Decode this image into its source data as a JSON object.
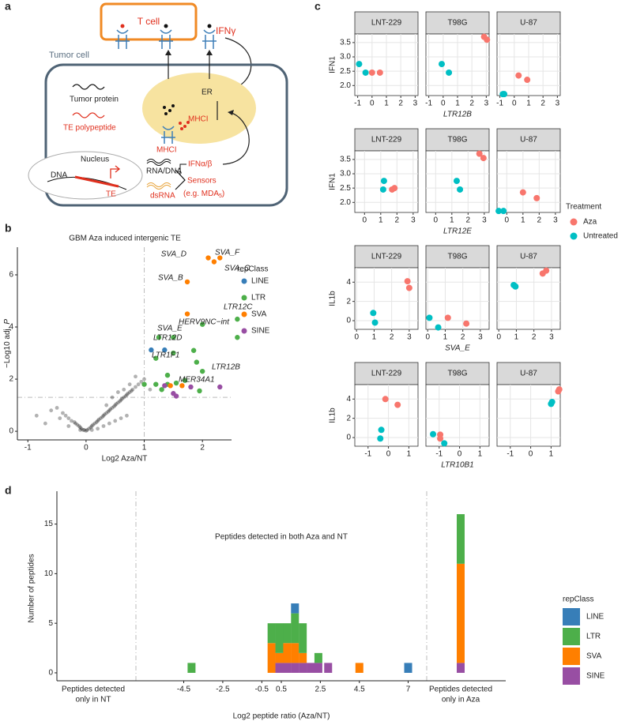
{
  "panel_labels": [
    "a",
    "b",
    "c",
    "d"
  ],
  "diagram": {
    "t_cell": "T cell",
    "ifng": "IFNγ",
    "tumor_cell": "Tumor cell",
    "er": "ER",
    "tumor_protein": "Tumor protein",
    "te_polypeptide": "TE polypeptide",
    "mhci_er": "MHCI",
    "mhci": "MHCI",
    "nucleus": "Nucleus",
    "dna": "DNA",
    "te": "TE",
    "rna_dna": "RNA/DNA",
    "dsrna": "dsRNA",
    "ifnab": "IFNα/β",
    "sensors": "Sensors",
    "sensors_example": "(e.g. MDA",
    "sensors_sub": "5",
    "sensors_close": ")"
  },
  "chart_data": [
    {
      "type": "scatter",
      "title": "GBM Aza induced intergenic TE",
      "xlabel": "Log2 Aza/NT",
      "ylabel": "−Log10 adj. ",
      "ylabel_italic": "P",
      "xlim": [
        -1.18,
        2.5
      ],
      "ylim": [
        -0.33,
        7.06
      ],
      "xticks": [
        -1,
        0,
        1,
        2
      ],
      "yticks": [
        0,
        2,
        4,
        6
      ],
      "grid": false,
      "vlines": [
        1
      ],
      "hlines": [
        1.3
      ],
      "legend_title": "repClass",
      "series": [
        {
          "color": "#000000",
          "x": [
            -0.85,
            -0.6,
            -0.5,
            -0.45,
            -0.4,
            -0.35,
            -0.3,
            -0.25,
            -0.2,
            -0.18,
            -0.15,
            -0.12,
            -0.1,
            -0.08,
            -0.05,
            -0.03,
            0,
            0.02,
            0.05,
            0.08,
            0.1,
            0.12,
            0.15,
            0.18,
            0.2,
            0.22,
            0.25,
            0.28,
            0.3,
            0.32,
            0.35,
            0.38,
            0.4,
            0.42,
            0.45,
            0.48,
            0.5,
            0.52,
            0.55,
            0.58,
            0.6,
            0.62,
            0.65,
            0.68,
            0.7,
            0.72,
            0.75,
            0.78,
            0.8,
            0.85,
            0.9,
            0.95,
            1.0,
            0.3,
            0.4,
            0.5,
            0.6,
            0.7,
            0.2,
            0.1,
            -0.1,
            -0.3,
            0.45,
            0.55,
            0.65,
            0.75,
            0.85,
            1.1,
            -0.7,
            0.35
          ],
          "values": [
            0.6,
            0.8,
            0.9,
            0.5,
            0.7,
            0.6,
            0.5,
            0.4,
            0.35,
            0.3,
            0.25,
            0.2,
            0.15,
            0.1,
            0.05,
            0.05,
            0.02,
            0.05,
            0.1,
            0.15,
            0.2,
            0.25,
            0.3,
            0.35,
            0.4,
            0.45,
            0.5,
            0.55,
            0.6,
            0.65,
            0.7,
            0.75,
            0.8,
            0.85,
            0.9,
            0.95,
            1.0,
            1.05,
            1.1,
            1.15,
            1.2,
            1.25,
            1.3,
            1.35,
            1.4,
            1.45,
            1.5,
            1.55,
            1.6,
            1.7,
            1.8,
            1.9,
            2.0,
            0.2,
            0.3,
            0.4,
            0.5,
            0.6,
            0.1,
            0.05,
            0.05,
            0.2,
            1.3,
            1.5,
            1.6,
            1.8,
            2.1,
            1.6,
            0.3,
            1.0
          ]
        },
        {
          "name": "LINE",
          "color": "#377EB8",
          "x": [
            1.12,
            1.35
          ],
          "values": [
            3.12,
            3.12
          ]
        },
        {
          "name": "LTR",
          "color": "#4DAF4A",
          "x": [
            2.6,
            2.0,
            1.5,
            1.5,
            2.6,
            1.25,
            1.2,
            1.85,
            1.9,
            2.0,
            1.0,
            1.2,
            1.4,
            1.55,
            1.95,
            1.7,
            1.3,
            1.4
          ],
          "values": [
            4.3,
            4.1,
            3.6,
            3.0,
            3.6,
            3.6,
            2.8,
            3.1,
            2.65,
            2.3,
            1.8,
            1.8,
            1.8,
            1.85,
            1.55,
            1.95,
            1.6,
            2.15
          ]
        },
        {
          "name": "SVA",
          "color": "#FF7F00",
          "x": [
            2.1,
            2.3,
            2.2,
            1.74,
            1.74,
            1.45,
            1.65
          ],
          "values": [
            6.65,
            6.65,
            6.5,
            5.73,
            4.5,
            1.75,
            1.75
          ]
        },
        {
          "name": "SINE",
          "color": "#984EA3",
          "x": [
            1.35,
            1.55,
            1.8,
            2.3,
            1.5
          ],
          "values": [
            1.75,
            1.35,
            1.7,
            1.7,
            1.45
          ]
        }
      ],
      "annotations": [
        "SVA_D",
        "SVA_F",
        "SVA_C",
        "SVA_B",
        "SVA_E",
        "LTR12C",
        "HERV9NC−int",
        "LTR12D",
        "LTR1F1",
        "LTR12B",
        "MER34A1"
      ]
    },
    {
      "type": "facet_scatter",
      "legend_title": "Treatment",
      "grid": true,
      "legend": [
        {
          "name": "Aza",
          "color": "#F8766D"
        },
        {
          "name": "Untreated",
          "color": "#00BFC4"
        }
      ],
      "rows": [
        {
          "xlabel": "LTR12B",
          "ylabel": "IFN1",
          "xlim": [
            -1.2,
            3.2
          ],
          "xticks": [
            -1,
            0,
            1,
            2,
            3
          ],
          "ylim": [
            1.65,
            3.8
          ],
          "yticks": [
            {
              "value": 2,
              "label": "2.0"
            },
            2.5,
            {
              "value": 3,
              "label": "3.0"
            },
            3.5
          ],
          "facets": [
            {
              "title": "LNT-229",
              "series": [
                {
                  "x": [
                    0,
                    0.55
                  ],
                  "values": [
                    2.45,
                    2.45
                  ]
                },
                {
                  "x": [
                    -0.9,
                    -0.45
                  ],
                  "values": [
                    2.75,
                    2.45
                  ]
                }
              ]
            },
            {
              "title": "T98G",
              "series": [
                {
                  "x": [
                    2.85,
                    3.05
                  ],
                  "values": [
                    3.7,
                    3.6
                  ]
                },
                {
                  "x": [
                    -0.1,
                    0.4
                  ],
                  "values": [
                    2.75,
                    2.45
                  ]
                }
              ]
            },
            {
              "title": "U-87",
              "series": [
                {
                  "x": [
                    0.3,
                    0.9
                  ],
                  "values": [
                    2.35,
                    2.2
                  ]
                },
                {
                  "x": [
                    -0.8,
                    -0.7
                  ],
                  "values": [
                    1.7,
                    1.7
                  ]
                }
              ]
            }
          ]
        },
        {
          "xlabel": "LTR12E",
          "ylabel": "IFN1",
          "xlim": [
            -0.6,
            3.3
          ],
          "xticks": [
            0,
            1,
            2,
            3
          ],
          "ylim": [
            1.65,
            3.8
          ],
          "yticks": [
            {
              "value": 2,
              "label": "2.0"
            },
            2.5,
            {
              "value": 3,
              "label": "3.0"
            },
            3.5
          ],
          "facets": [
            {
              "title": "LNT-229",
              "series": [
                {
                  "x": [
                    1.7,
                    1.85
                  ],
                  "values": [
                    2.45,
                    2.5
                  ]
                },
                {
                  "x": [
                    1.2,
                    1.15
                  ],
                  "values": [
                    2.75,
                    2.45
                  ]
                }
              ]
            },
            {
              "title": "T98G",
              "series": [
                {
                  "x": [
                    2.7,
                    2.95
                  ],
                  "values": [
                    3.7,
                    3.55
                  ]
                },
                {
                  "x": [
                    1.3,
                    1.5
                  ],
                  "values": [
                    2.75,
                    2.45
                  ]
                }
              ]
            },
            {
              "title": "U-87",
              "series": [
                {
                  "x": [
                    1.0,
                    1.85
                  ],
                  "values": [
                    2.35,
                    2.15
                  ]
                },
                {
                  "x": [
                    -0.5,
                    -0.2
                  ],
                  "values": [
                    1.7,
                    1.7
                  ]
                }
              ]
            }
          ]
        },
        {
          "xlabel": "SVA_E",
          "ylabel": "IL1b",
          "xlim": [
            -0.1,
            3.5
          ],
          "xticks": [
            0,
            1,
            2,
            3
          ],
          "ylim": [
            -0.9,
            5.5
          ],
          "yticks": [
            0,
            2,
            4
          ],
          "facets": [
            {
              "title": "LNT-229",
              "series": [
                {
                  "x": [
                    2.9,
                    3.0
                  ],
                  "values": [
                    4.1,
                    3.4
                  ]
                },
                {
                  "x": [
                    0.95,
                    1.05
                  ],
                  "values": [
                    0.8,
                    -0.2
                  ]
                }
              ]
            },
            {
              "title": "T98G",
              "series": [
                {
                  "x": [
                    1.15,
                    2.2
                  ],
                  "values": [
                    0.3,
                    -0.3
                  ]
                },
                {
                  "x": [
                    0.1,
                    0.6
                  ],
                  "values": [
                    0.3,
                    -0.7
                  ]
                }
              ]
            },
            {
              "title": "U-87",
              "series": [
                {
                  "x": [
                    2.5,
                    2.7
                  ],
                  "values": [
                    4.9,
                    5.2
                  ]
                },
                {
                  "x": [
                    0.85,
                    0.95
                  ],
                  "values": [
                    3.7,
                    3.55
                  ]
                }
              ]
            }
          ]
        },
        {
          "xlabel": "LTR10B1",
          "ylabel": "IL1b",
          "xlim": [
            -1.65,
            1.45
          ],
          "xticks": [
            -1,
            0,
            1
          ],
          "ylim": [
            -0.9,
            5.5
          ],
          "yticks": [
            0,
            2,
            4
          ],
          "facets": [
            {
              "title": "LNT-229",
              "series": [
                {
                  "x": [
                    -0.15,
                    0.45
                  ],
                  "values": [
                    4.0,
                    3.4
                  ]
                },
                {
                  "x": [
                    -0.35,
                    -0.4
                  ],
                  "values": [
                    0.8,
                    -0.1
                  ]
                }
              ]
            },
            {
              "title": "T98G",
              "series": [
                {
                  "x": [
                    -0.95,
                    -0.95
                  ],
                  "values": [
                    0.3,
                    -0.1
                  ]
                },
                {
                  "x": [
                    -1.3,
                    -0.75
                  ],
                  "values": [
                    0.35,
                    -0.6
                  ]
                }
              ]
            },
            {
              "title": "U-87",
              "series": [
                {
                  "x": [
                    1.35,
                    1.4
                  ],
                  "values": [
                    4.8,
                    5.0
                  ]
                },
                {
                  "x": [
                    1.0,
                    1.05
                  ],
                  "values": [
                    3.5,
                    3.7
                  ]
                }
              ]
            }
          ]
        }
      ]
    },
    {
      "type": "stacked_bar",
      "xlabel": "Log2 peptide ratio (Aza/NT)",
      "ylabel": "Number of peptides",
      "annotation": "Peptides detected in both Aza and NT",
      "xlim": [
        -11,
        12
      ],
      "xticks": [
        -4.5,
        -2.5,
        -0.5,
        0.5,
        2.5,
        4.5,
        7
      ],
      "ylim": [
        -0.8,
        16.8
      ],
      "yticks": [
        0,
        5,
        10,
        15
      ],
      "grid": false,
      "legend_title": "repClass",
      "x": [
        -4.1,
        0,
        0.4,
        0.8,
        1.2,
        1.6,
        2.0,
        2.4,
        2.9,
        4.5,
        7.0
      ],
      "side_categories": [
        [
          "Peptides detected",
          "only in NT"
        ],
        [
          "Peptides detected",
          "only in Aza"
        ]
      ],
      "series": [
        {
          "name": "LINE",
          "color": "#377EB8",
          "values": [
            0,
            0,
            0,
            0,
            1,
            0,
            0,
            0,
            0,
            0,
            1
          ],
          "side_values": [
            null,
            0
          ]
        },
        {
          "name": "LTR",
          "color": "#4DAF4A",
          "values": [
            1,
            2,
            3,
            2,
            3,
            3,
            0,
            1,
            0,
            0,
            0
          ],
          "side_values": [
            null,
            5
          ]
        },
        {
          "name": "SVA",
          "color": "#FF7F00",
          "values": [
            0,
            3,
            1,
            2,
            2,
            1,
            0,
            0,
            0,
            1,
            0
          ],
          "side_values": [
            null,
            10
          ]
        },
        {
          "name": "SINE",
          "color": "#984EA3",
          "values": [
            0,
            0,
            1,
            1,
            1,
            1,
            1,
            1,
            1,
            0,
            0
          ],
          "side_values": [
            null,
            1
          ]
        }
      ]
    }
  ]
}
